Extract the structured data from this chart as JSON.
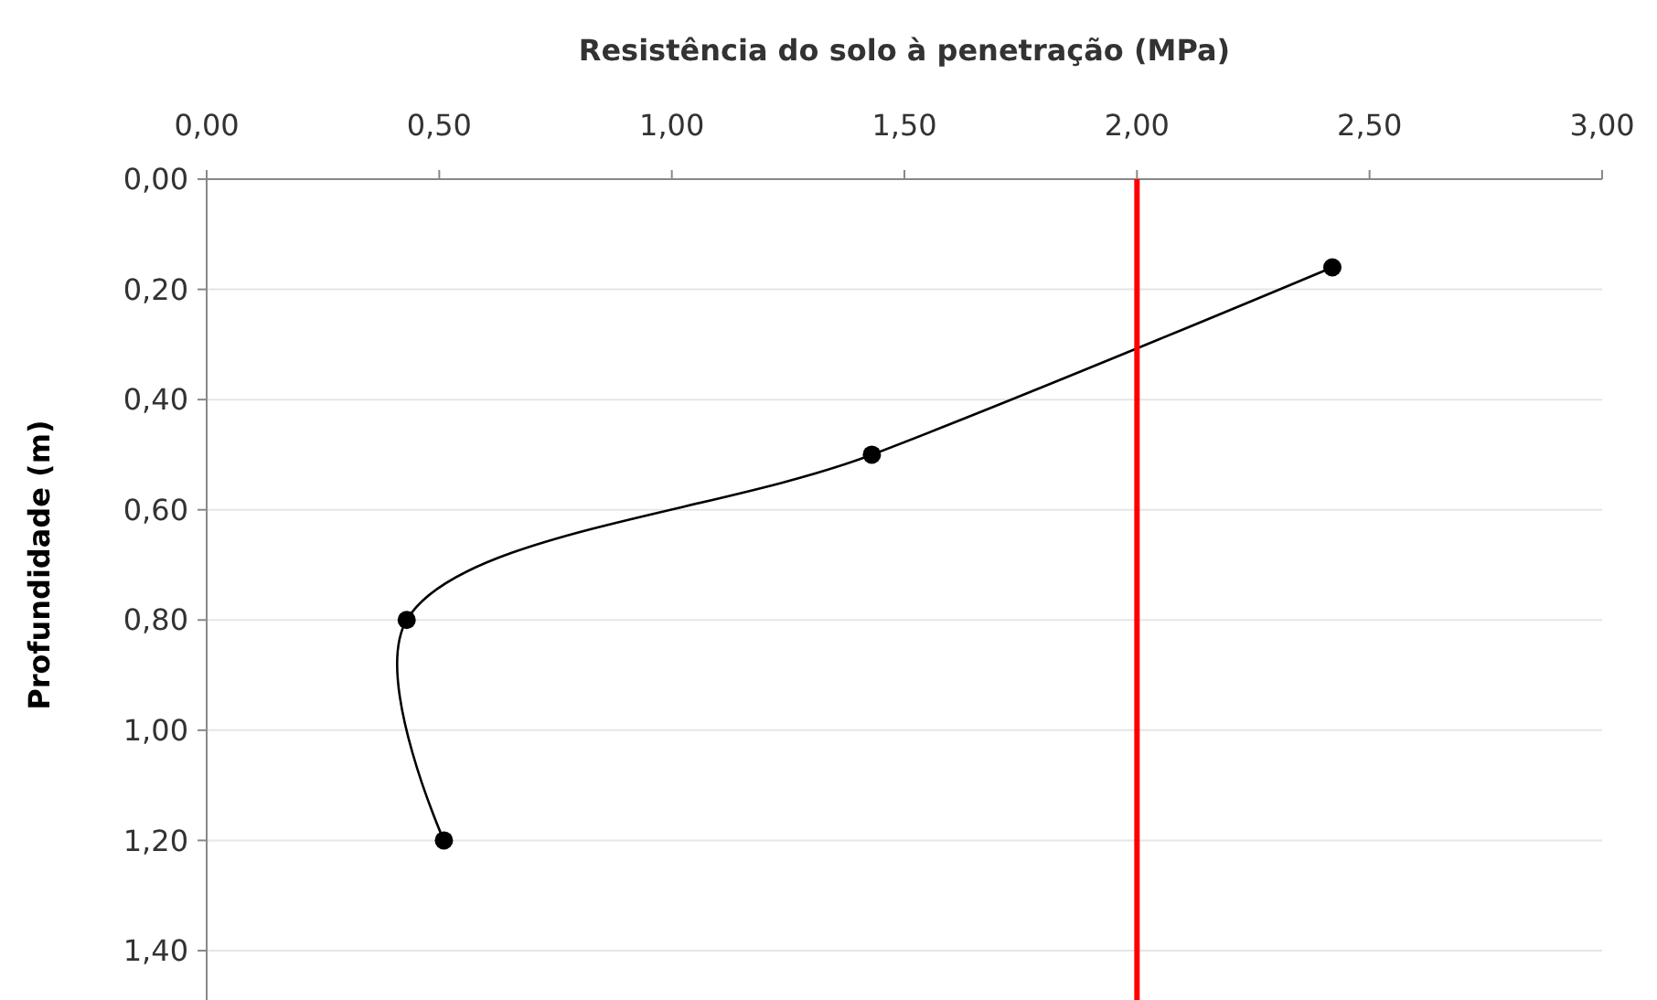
{
  "chart_data": {
    "type": "line",
    "xlabel": "Resistência do solo à penetração (MPa)",
    "ylabel": "Profundidade (m)",
    "x": [
      2.42,
      1.43,
      0.43,
      0.51
    ],
    "series": [
      {
        "color": "#000000",
        "values": [
          0.16,
          0.5,
          0.8,
          1.2
        ]
      }
    ],
    "xlim": [
      0,
      3
    ],
    "xticks": [
      {
        "value": 0,
        "label": "0,00"
      },
      {
        "value": 0.5,
        "label": "0,50"
      },
      {
        "value": 1,
        "label": "1,00"
      },
      {
        "value": 1.5,
        "label": "1,50"
      },
      {
        "value": 2,
        "label": "2,00"
      },
      {
        "value": 2.5,
        "label": "2,50"
      },
      {
        "value": 3,
        "label": "3,00"
      }
    ],
    "ylim": [
      1.5,
      0
    ],
    "yticks": [
      {
        "value": 0,
        "label": "0,00"
      },
      {
        "value": 0.2,
        "label": "0,20"
      },
      {
        "value": 0.4,
        "label": "0,40"
      },
      {
        "value": 0.6,
        "label": "0,60"
      },
      {
        "value": 0.8,
        "label": "0,80"
      },
      {
        "value": 1,
        "label": "1,00"
      },
      {
        "value": 1.2,
        "label": "1,20"
      },
      {
        "value": 1.4,
        "label": "1,40"
      }
    ],
    "grid": "y",
    "marker": "circle",
    "line_style": "solid",
    "ref_lines": [
      {
        "axis": "x",
        "value": 2,
        "color": "#ff0000"
      }
    ]
  }
}
